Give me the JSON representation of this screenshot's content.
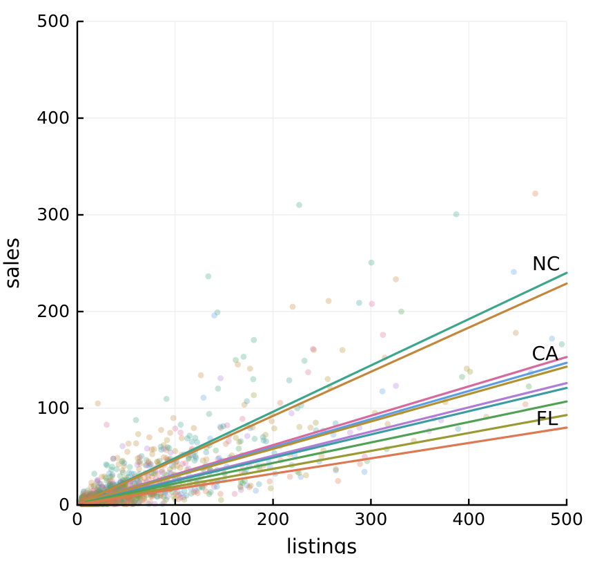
{
  "chart_data": {
    "type": "scatter",
    "title": "",
    "xlabel": "listings",
    "ylabel": "sales",
    "xlim": [
      0,
      500
    ],
    "ylim": [
      0,
      500
    ],
    "xticks": [
      "0",
      "100",
      "200",
      "300",
      "400",
      "500"
    ],
    "yticks": [
      "0",
      "100",
      "200",
      "300",
      "400",
      "500"
    ],
    "grid": true,
    "legend_position": "none",
    "series": [
      {
        "label": "NC",
        "color": "#3ba68b",
        "line": {
          "x0": 9,
          "y0": 5,
          "x1": 500,
          "y1": 240
        }
      },
      {
        "label": "",
        "color": "#c3873b",
        "line": {
          "x0": 9,
          "y0": 5,
          "x1": 500,
          "y1": 229
        }
      },
      {
        "label": "CA",
        "color": "#d8699e",
        "line": {
          "x0": 9,
          "y0": 4,
          "x1": 500,
          "y1": 153
        }
      },
      {
        "label": "",
        "color": "#5e9ce4",
        "line": {
          "x0": 9,
          "y0": 4,
          "x1": 500,
          "y1": 147
        }
      },
      {
        "label": "",
        "color": "#b2922f",
        "line": {
          "x0": 9,
          "y0": 4,
          "x1": 500,
          "y1": 143
        }
      },
      {
        "label": "",
        "color": "#b07cd6",
        "line": {
          "x0": 9,
          "y0": 3,
          "x1": 500,
          "y1": 126
        }
      },
      {
        "label": "",
        "color": "#3b9da4",
        "line": {
          "x0": 9,
          "y0": 3,
          "x1": 500,
          "y1": 121
        }
      },
      {
        "label": "",
        "color": "#51a155",
        "line": {
          "x0": 9,
          "y0": 3,
          "x1": 500,
          "y1": 107
        }
      },
      {
        "label": "FL",
        "color": "#9a9a32",
        "line": {
          "x0": 9,
          "y0": 2,
          "x1": 500,
          "y1": 93
        }
      },
      {
        "label": "",
        "color": "#dc7852",
        "line": {
          "x0": 9,
          "y0": 2,
          "x1": 500,
          "y1": 80
        }
      }
    ],
    "annotations": [
      {
        "text": "NC",
        "x": 479,
        "y": 250
      },
      {
        "text": "CA",
        "x": 478,
        "y": 157
      },
      {
        "text": "FL",
        "x": 480,
        "y": 90
      }
    ],
    "scatter": {
      "seed": 1234567,
      "points_per_series": 130,
      "x_min": 4,
      "x_max": 497,
      "x_exp_mean_main": 42,
      "x_exp_mean_tail": 150,
      "tail_fraction": 0.2,
      "mult_noise_sd": 0.55,
      "add_noise_sd": 4,
      "y_min": 1,
      "y_max": 335,
      "point_radius": 4.4,
      "point_opacity": 0.3,
      "outliers": [
        {
          "series": 9,
          "x": 468,
          "y": 322
        },
        {
          "series": 3,
          "x": 446,
          "y": 241
        },
        {
          "series": 6,
          "x": 288,
          "y": 209
        },
        {
          "series": 2,
          "x": 301,
          "y": 208
        },
        {
          "series": 1,
          "x": 220,
          "y": 205
        },
        {
          "series": 7,
          "x": 331,
          "y": 200
        },
        {
          "series": 3,
          "x": 140,
          "y": 196
        },
        {
          "series": 3,
          "x": 129,
          "y": 111
        },
        {
          "series": 1,
          "x": 21,
          "y": 105
        },
        {
          "series": 2,
          "x": 30,
          "y": 83
        },
        {
          "series": 1,
          "x": 448,
          "y": 178
        },
        {
          "series": 3,
          "x": 485,
          "y": 172
        }
      ]
    },
    "colors": {
      "axis": "#000000",
      "grid": "#ececec",
      "text": "#000000",
      "background": "#ffffff"
    }
  }
}
